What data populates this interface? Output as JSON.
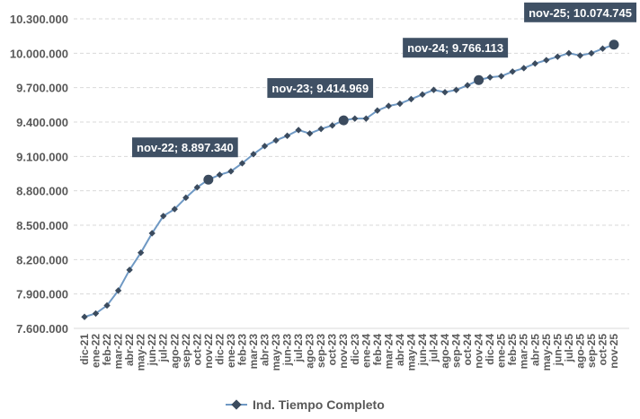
{
  "chart_data": {
    "type": "line",
    "title": "",
    "xlabel": "",
    "ylabel": "",
    "ylim": [
      7600000,
      10300000
    ],
    "yticks": [
      "7.600.000",
      "7.900.000",
      "8.200.000",
      "8.500.000",
      "8.800.000",
      "9.100.000",
      "9.400.000",
      "9.700.000",
      "10.000.000",
      "10.300.000"
    ],
    "ytick_values": [
      7600000,
      7900000,
      8200000,
      8500000,
      8800000,
      9100000,
      9400000,
      9700000,
      10000000,
      10300000
    ],
    "grid": "horizontal dashed",
    "legend": "bottom-center",
    "colors": {
      "line": "#6f99c4",
      "marker": "#3b4b5e",
      "annotation_bg": "#3f5064",
      "annotation_text": "#ffffff",
      "axis_text": "#595959",
      "grid": "#d9d9d9"
    },
    "categories": [
      "dic-21",
      "ene-22",
      "feb-22",
      "mar-22",
      "abr-22",
      "may-22",
      "jun-22",
      "jul-22",
      "ago-22",
      "sep-22",
      "oct-22",
      "nov-22",
      "dic-22",
      "ene-23",
      "feb-23",
      "mar-23",
      "abr-23",
      "may-23",
      "jun-23",
      "jul-23",
      "ago-23",
      "sep-23",
      "oct-23",
      "nov-23",
      "dic-23",
      "ene-24",
      "feb-24",
      "mar-24",
      "abr-24",
      "may-24",
      "jun-24",
      "jul-24",
      "ago-24",
      "sep-24",
      "oct-24",
      "nov-24",
      "dic-24",
      "ene-25",
      "feb-25",
      "mar-25",
      "abr-25",
      "may-25",
      "jun-25",
      "jul-25",
      "ago-25",
      "sep-25",
      "oct-25",
      "nov-25"
    ],
    "series": [
      {
        "name": "Ind. Tiempo Completo",
        "values": [
          7700000,
          7730000,
          7800000,
          7930000,
          8110000,
          8260000,
          8430000,
          8580000,
          8640000,
          8740000,
          8830000,
          8897340,
          8940000,
          8970000,
          9040000,
          9120000,
          9190000,
          9240000,
          9280000,
          9330000,
          9300000,
          9340000,
          9370000,
          9414969,
          9430000,
          9430000,
          9500000,
          9540000,
          9560000,
          9600000,
          9640000,
          9680000,
          9660000,
          9680000,
          9720000,
          9766113,
          9790000,
          9800000,
          9840000,
          9870000,
          9910000,
          9940000,
          9970000,
          10000000,
          9980000,
          10000000,
          10040000,
          10074745
        ]
      }
    ],
    "annotations": [
      {
        "index": 11,
        "label": "nov-22; 8.897.340"
      },
      {
        "index": 23,
        "label": "nov-23; 9.414.969"
      },
      {
        "index": 35,
        "label": "nov-24; 9.766.113"
      },
      {
        "index": 47,
        "label": "nov-25; 10.074.745"
      }
    ]
  }
}
